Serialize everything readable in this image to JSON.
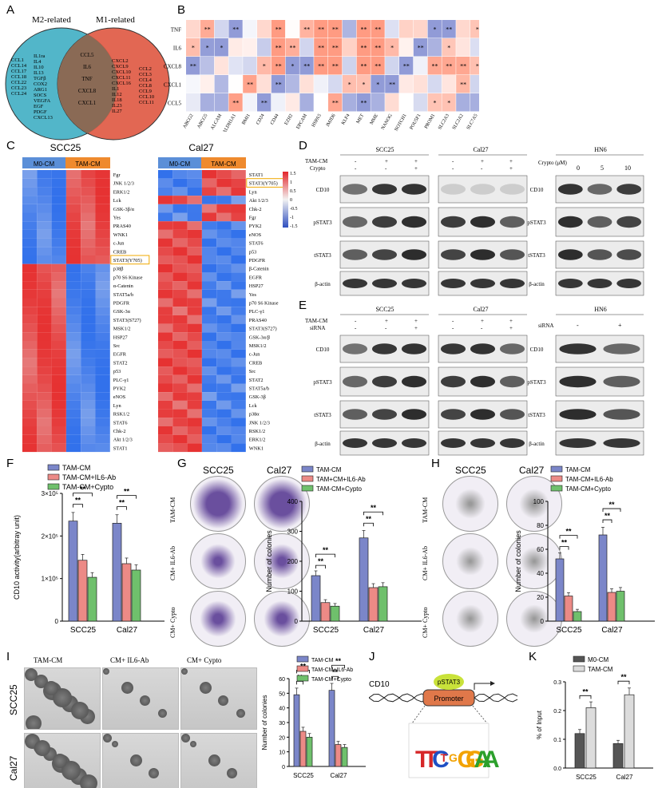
{
  "panels": [
    "A",
    "B",
    "C",
    "D",
    "E",
    "F",
    "G",
    "H",
    "I",
    "J",
    "K"
  ],
  "venn": {
    "left_title": "M2-related",
    "right_title": "M1-related",
    "left_only": [
      "IL1ra",
      "IL4",
      "IL10",
      "IL13",
      "TGFβ",
      "COX2",
      "ARG1",
      "SOCS",
      "VEGFA",
      "EGF",
      "PDGF",
      "CXCL13"
    ],
    "left_extra": [
      "CCL1",
      "CCL14",
      "CCL17",
      "CCL18",
      "CCL22",
      "CCL23",
      "CCL24"
    ],
    "overlap": [
      "CCL5",
      "IL6",
      "TNF",
      "CXCL8",
      "CXCL1"
    ],
    "right_only": [
      "CXCL2",
      "CXCL9",
      "CXCL10",
      "CXCL11",
      "CXCL16",
      "IL1",
      "IL12",
      "IL18",
      "IL23",
      "IL27"
    ],
    "right_extra": [
      "CCL2",
      "CCL3",
      "CCL4",
      "CCL8",
      "CCL9",
      "CCL10",
      "CCL11"
    ]
  },
  "corr": {
    "rows": [
      "TNF",
      "IL6",
      "CXCL8",
      "CXCL1",
      "CCL5"
    ],
    "cols": [
      "ABCG2",
      "ABCG5",
      "ALCAM",
      "ALDH1A1",
      "BMI1",
      "CD24",
      "CD44",
      "EZH2",
      "EPCAM",
      "HSPA5",
      "JMJD6",
      "KLF4",
      "MET",
      "MME",
      "NANOG",
      "NOTCH1",
      "POU5F1",
      "PROM1",
      "SLC2A3",
      "SLC2A2",
      "SLC7A5",
      "SOX2",
      "TAZ",
      "TBX3",
      "TOP1",
      "TOP2A",
      "TOP2B"
    ],
    "legend_sig1": "* p < 0.05",
    "legend_sig2": "** p < 0.01",
    "legend_title": "Correlation",
    "legend_ticks": [
      "0.3",
      "0.2",
      "0.1",
      "0",
      "-0.1"
    ]
  },
  "heat_c": {
    "left_title": "SCC25",
    "right_title": "Cal27",
    "group1": "M0-CM",
    "group2": "TAM-CM",
    "left_rows": [
      "Fgr",
      "JNK 1/2/3",
      "ERK1/2",
      "Lck",
      "GSK-3β/α",
      "Yes",
      "PRAS40",
      "WNK1",
      "c-Jun",
      "CREB",
      "STAT3(Y705)",
      "p38β",
      "p70 S6 Kinase",
      "α-Catenin",
      "STAT5a/b",
      "PDGFR",
      "GSK-3α",
      "STAT3(S727)",
      "MSK1/2",
      "HSP27",
      "Src",
      "EGFR",
      "STAT2",
      "p53",
      "PLC-γ1",
      "PYK2",
      "eNOS",
      "Lyn",
      "RSK1/2",
      "STAT6",
      "Chk-2",
      "Akt 1/2/3",
      "STAT1"
    ],
    "right_rows": [
      "STAT1",
      "STAT3(Y705)",
      "Lyn",
      "Akt 1/2/3",
      "Chk-2",
      "Fgr",
      "PYK2",
      "eNOS",
      "STAT6",
      "p53",
      "PDGFR",
      "β-Catenin",
      "EGFR",
      "HSP27",
      "Yes",
      "p70 S6 Kinase",
      "PLC-γ1",
      "PRAS40",
      "STAT3(S727)",
      "GSK-3α/β",
      "MSK1/2",
      "c-Jun",
      "CREB",
      "Src",
      "STAT2",
      "STAT5a/b",
      "GSK-3β",
      "Lck",
      "p38α",
      "JNK 1/2/3",
      "RSK1/2",
      "ERK1/2",
      "WNK1"
    ],
    "scale_ticks": [
      "1.5",
      "1",
      "0.5",
      "0",
      "-0.5",
      "-1",
      "-1.5"
    ]
  },
  "blot_d": {
    "title1": "SCC25",
    "title2": "Cal27",
    "title3": "HN6",
    "row_tam": "TAM-CM",
    "row_crypto": "Crypto",
    "signs_tam": [
      "-",
      "+",
      "+"
    ],
    "signs_crypto": [
      "-",
      "-",
      "+"
    ],
    "crypto_um": "Crypto (μM)",
    "doses": [
      "0",
      "5",
      "10"
    ],
    "proteins": [
      "CD10",
      "pSTAT3",
      "tSTAT3",
      "β-actin"
    ]
  },
  "blot_e": {
    "title1": "SCC25",
    "title2": "Cal27",
    "title3": "HN6",
    "row_tam": "TAM-CM",
    "row_sirna": "siRNA",
    "signs_tam": [
      "-",
      "+",
      "+"
    ],
    "signs_sirna": [
      "-",
      "-",
      "+"
    ],
    "hn6_sirna": "siRNA",
    "hn6_signs": [
      "-",
      "+"
    ],
    "proteins": [
      "CD10",
      "pSTAT3",
      "tSTAT3",
      "β-actin"
    ]
  },
  "colors": {
    "blue": "#7b86c9",
    "red": "#ec8a86",
    "green": "#6fc06c",
    "dgray": "#555555",
    "lgray": "#dcdcdc"
  },
  "chart_f": {
    "type": "bar",
    "ylabel": "CD10 activity(arbitray unit)",
    "yticks": [
      "0",
      "1×10⁵",
      "2×10⁵",
      "3×10⁵"
    ],
    "categories": [
      "SCC25",
      "Cal27"
    ],
    "series": [
      {
        "name": "TAM-CM",
        "values": [
          235000,
          230000
        ]
      },
      {
        "name": "TAM-CM+IL6-Ab",
        "values": [
          143000,
          135000
        ]
      },
      {
        "name": "TAM-CM+Cypto",
        "values": [
          103000,
          120000
        ]
      }
    ],
    "ylim": [
      0,
      300000
    ],
    "sig": "**"
  },
  "chart_g": {
    "type": "bar",
    "ylabel": "Number of colonies",
    "yticks": [
      "0",
      "100",
      "200",
      "300",
      "400"
    ],
    "categories": [
      "SCC25",
      "Cal27"
    ],
    "series": [
      {
        "name": "TAM-CM",
        "values": [
          152,
          278
        ]
      },
      {
        "name": "TAM+CM+IL6-Ab",
        "values": [
          62,
          112
        ]
      },
      {
        "name": "TAM-CM+Cypto",
        "values": [
          50,
          115
        ]
      }
    ],
    "ylim": [
      0,
      400
    ],
    "col_titles": [
      "SCC25",
      "Cal27"
    ],
    "row_titles": [
      "TAM-CM",
      "CM+ IL6-Ab",
      "CM+ Cypto"
    ]
  },
  "chart_h": {
    "type": "bar",
    "ylabel": "Number of colonies",
    "yticks": [
      "0",
      "20",
      "40",
      "60",
      "80",
      "100"
    ],
    "categories": [
      "SCC25",
      "Cal27"
    ],
    "series": [
      {
        "name": "TAM-CM",
        "values": [
          52,
          72
        ]
      },
      {
        "name": "TAM-CM+IL6-Ab",
        "values": [
          21,
          24
        ]
      },
      {
        "name": "TAM-CM+Cypto",
        "values": [
          8,
          25
        ]
      }
    ],
    "ylim": [
      0,
      100
    ],
    "col_titles": [
      "SCC25",
      "Cal27"
    ],
    "row_titles": [
      "TAM-CM",
      "CM+ IL6-Ab",
      "CM+ Cypto"
    ]
  },
  "chart_i": {
    "type": "bar",
    "ylabel": "Number of colonies",
    "yticks": [
      "0",
      "10",
      "20",
      "30",
      "40",
      "50",
      "60"
    ],
    "categories": [
      "SCC25",
      "Cal27"
    ],
    "series": [
      {
        "name": "TAM-CM",
        "values": [
          49,
          52
        ]
      },
      {
        "name": "TAM-CM+IL6-Ab",
        "values": [
          24,
          15
        ]
      },
      {
        "name": "TAM-CM+Cypto",
        "values": [
          20,
          13
        ]
      }
    ],
    "ylim": [
      0,
      60
    ],
    "col_titles": [
      "TAM-CM",
      "CM+ IL6-Ab",
      "CM+ Cypto"
    ],
    "row_titles": [
      "SCC25",
      "Cal27"
    ]
  },
  "diagram_j": {
    "gene": "CD10",
    "tf": "pSTAT3",
    "promoter": "Promoter",
    "motif": "TTCTGGGAA"
  },
  "chart_k": {
    "type": "bar",
    "ylabel": "% of Input",
    "yticks": [
      "0.0",
      "0.1",
      "0.2",
      "0.3"
    ],
    "categories": [
      "SCC25",
      "Cal27"
    ],
    "series": [
      {
        "name": "M0-CM",
        "values": [
          0.12,
          0.085
        ]
      },
      {
        "name": "TAM-CM",
        "values": [
          0.21,
          0.255
        ]
      }
    ],
    "ylim": [
      0,
      0.3
    ]
  }
}
